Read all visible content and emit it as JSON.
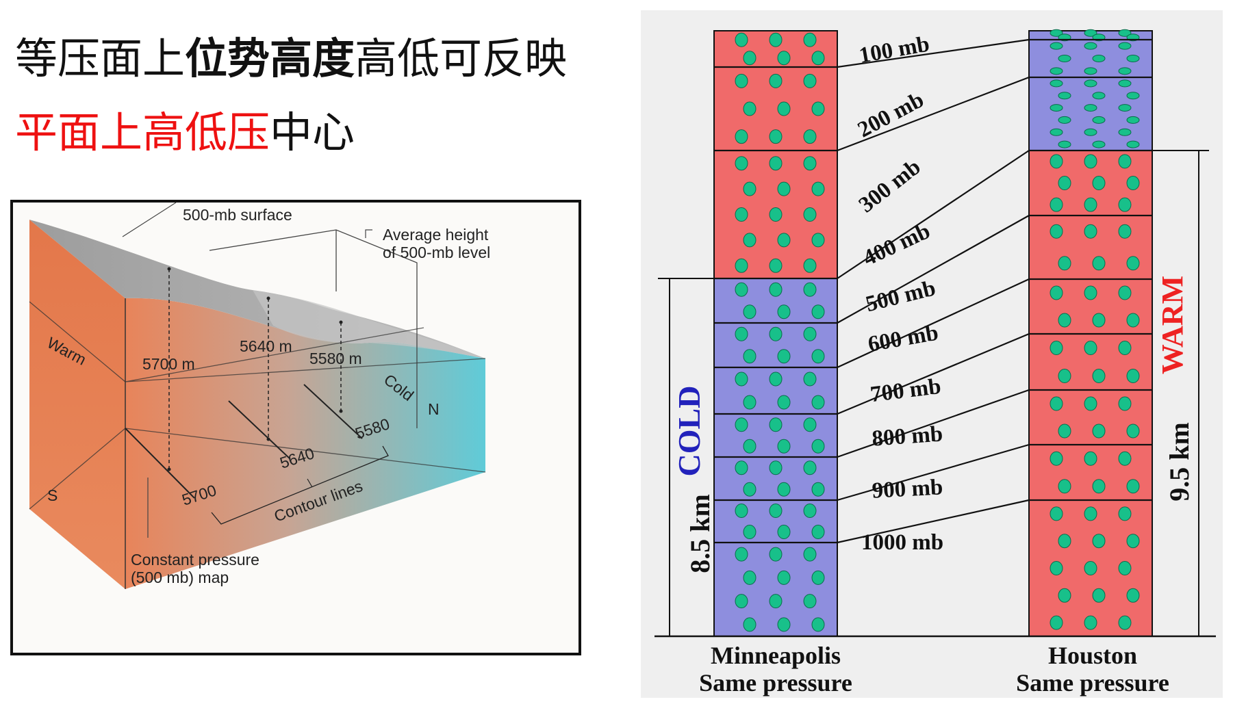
{
  "heading": {
    "line1": {
      "pre": "等压面上",
      "bold": "位势高度",
      "post": "高低可反映"
    },
    "line2": {
      "red": "平面上高低压",
      "post": "中心"
    }
  },
  "left_diagram": {
    "surface_label": "500-mb surface",
    "average_height_label_1": "Average height",
    "average_height_label_2": "of 500-mb level",
    "warm_label": "Warm",
    "cold_label": "Cold",
    "south_label": "S",
    "north_label": "N",
    "heights": [
      "5700 m",
      "5640 m",
      "5580 m"
    ],
    "contours": [
      "5700",
      "5640",
      "5580"
    ],
    "contour_lines_label": "Contour lines",
    "map_label_1": "Constant pressure",
    "map_label_2": "(500 mb) map"
  },
  "right_diagram": {
    "pressure_levels": [
      "100 mb",
      "200 mb",
      "300 mb",
      "400 mb",
      "500 mb",
      "600 mb",
      "700 mb",
      "800 mb",
      "900 mb",
      "1000 mb"
    ],
    "left_column": {
      "city": "Minneapolis",
      "caption": "Same pressure",
      "air_label": "COLD",
      "height_label": "8.5 km"
    },
    "right_column": {
      "city": "Houston",
      "caption": "Same pressure",
      "air_label": "WARM",
      "height_label": "9.5 km"
    },
    "colors": {
      "warm": "#f06a6a",
      "cold": "#8e8ede",
      "molecule": "#18c08a",
      "cold_label": "#2222bb",
      "warm_label": "#ee2222"
    }
  }
}
